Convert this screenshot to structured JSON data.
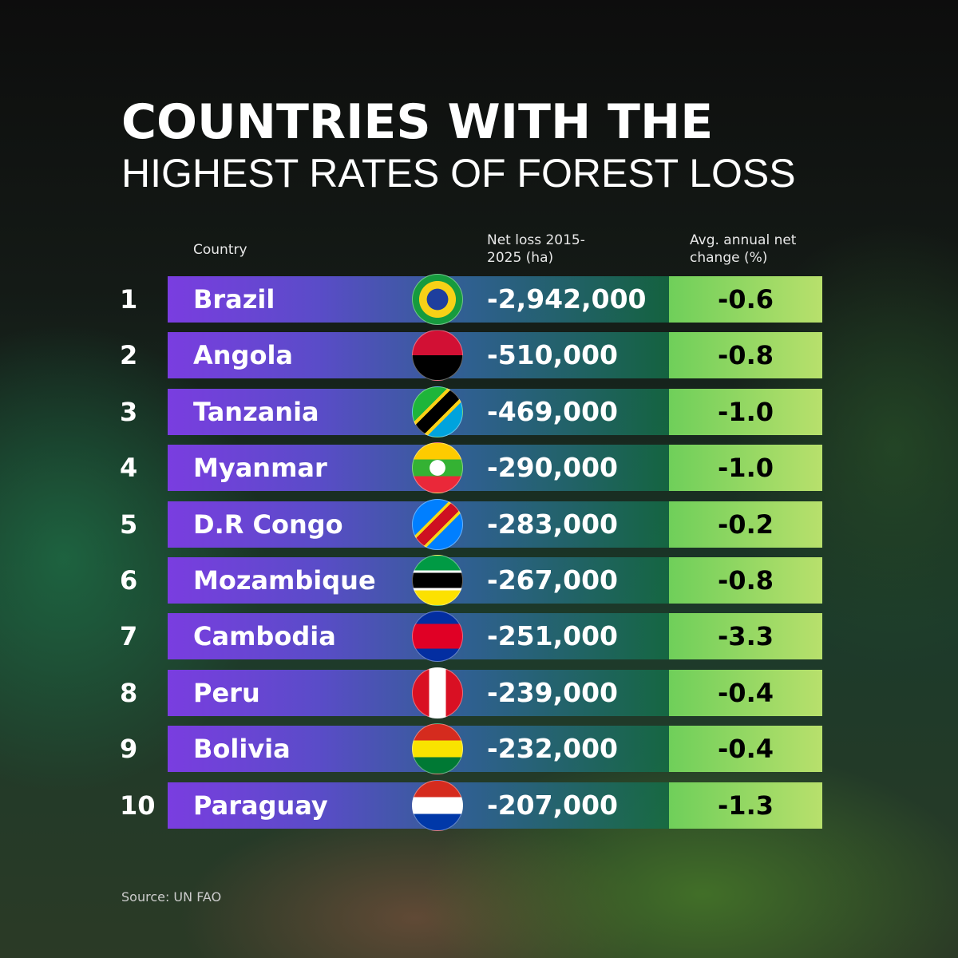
{
  "header": {
    "title_line1": "COUNTRIES WITH THE",
    "title_line2": "HIGHEST RATES OF FOREST LOSS"
  },
  "table": {
    "columns": [
      "Country",
      "Net loss 2015-2025 (ha)",
      "Avg. annual net change (%)"
    ],
    "rows": [
      [
        "1",
        "Brazil",
        "-2,942,000",
        "-0.6"
      ],
      [
        "2",
        "Angola",
        "-510,000",
        "-0.8"
      ],
      [
        "3",
        "Tanzania",
        "-469,000",
        "-1.0"
      ],
      [
        "4",
        "Myanmar",
        "-290,000",
        "-1.0"
      ],
      [
        "5",
        "D.R Congo",
        "-283,000",
        "-0.2"
      ],
      [
        "6",
        "Mozambique",
        "-267,000",
        "-0.8"
      ],
      [
        "7",
        "Cambodia",
        "-251,000",
        "-3.3"
      ],
      [
        "8",
        "Peru",
        "-239,000",
        "-0.4"
      ],
      [
        "9",
        "Bolivia",
        "-232,000",
        "-0.4"
      ],
      [
        "10",
        "Paraguay",
        "-207,000",
        "-1.3"
      ]
    ]
  },
  "footer": {
    "source": "Source: UN FAO"
  }
}
